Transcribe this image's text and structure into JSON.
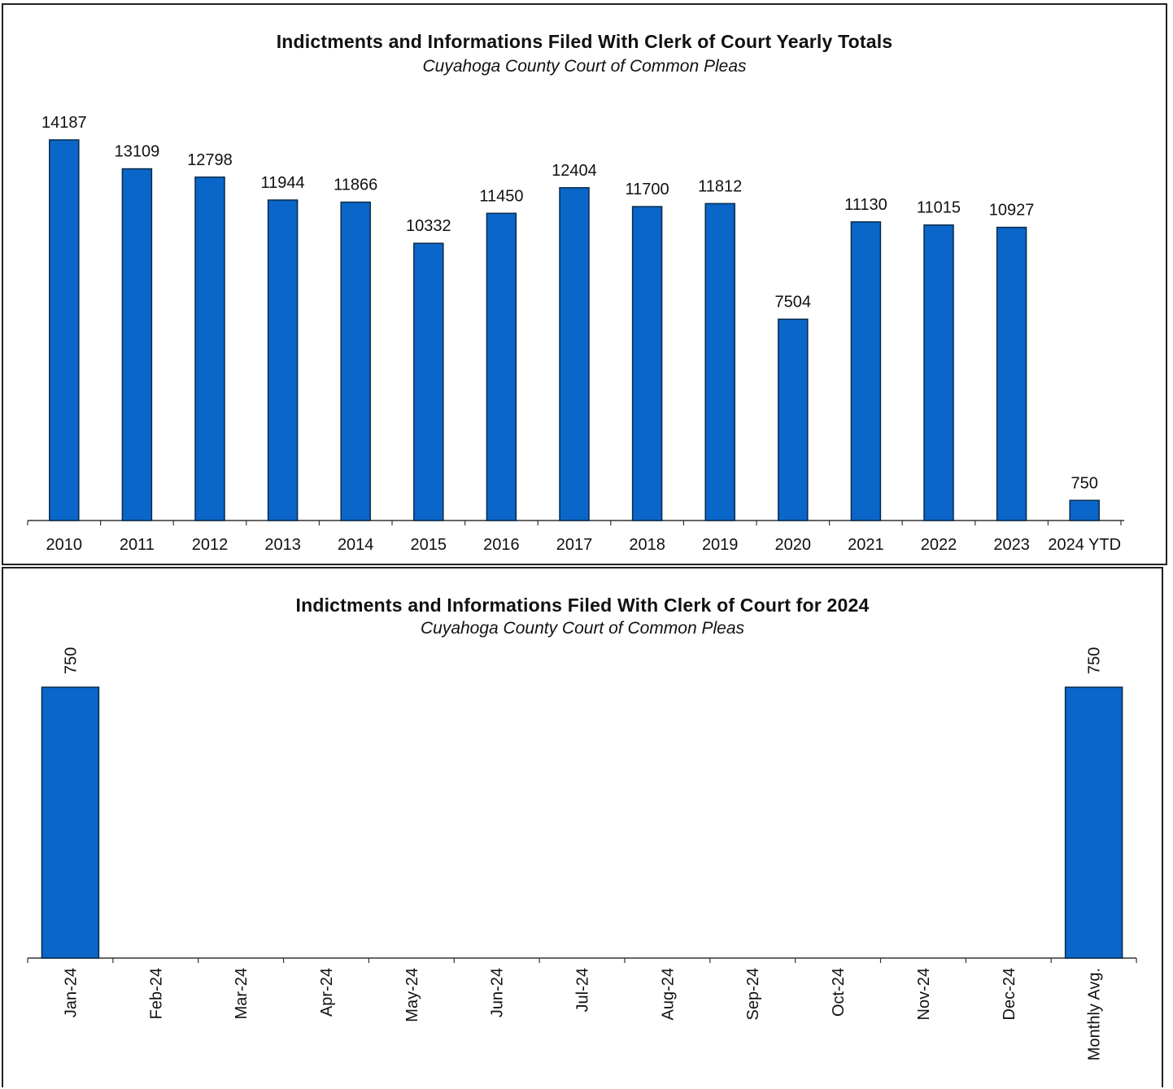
{
  "chart_data": [
    {
      "type": "bar",
      "title": "Indictments and Informations Filed With Clerk of Court Yearly Totals",
      "subtitle": "Cuyahoga County Court of Common Pleas",
      "categories": [
        "2010",
        "2011",
        "2012",
        "2013",
        "2014",
        "2015",
        "2016",
        "2017",
        "2018",
        "2019",
        "2020",
        "2021",
        "2022",
        "2023",
        "2024 YTD"
      ],
      "values": [
        14187,
        13109,
        12798,
        11944,
        11866,
        10332,
        11450,
        12404,
        11700,
        11812,
        7504,
        11130,
        11015,
        10927,
        750
      ],
      "data_labels": true,
      "ylim": [
        0,
        14187
      ],
      "grid": false,
      "bar_color": "#0a66c8"
    },
    {
      "type": "bar",
      "title": "Indictments and Informations Filed With Clerk of Court for 2024",
      "subtitle": "Cuyahoga County Court of Common Pleas",
      "categories": [
        "Jan-24",
        "Feb-24",
        "Mar-24",
        "Apr-24",
        "May-24",
        "Jun-24",
        "Jul-24",
        "Aug-24",
        "Sep-24",
        "Oct-24",
        "Nov-24",
        "Dec-24",
        "Monthly Avg."
      ],
      "values": [
        750,
        null,
        null,
        null,
        null,
        null,
        null,
        null,
        null,
        null,
        null,
        null,
        750
      ],
      "data_labels": true,
      "ylim": [
        0,
        750
      ],
      "grid": false,
      "bar_color": "#0a66c8"
    }
  ]
}
